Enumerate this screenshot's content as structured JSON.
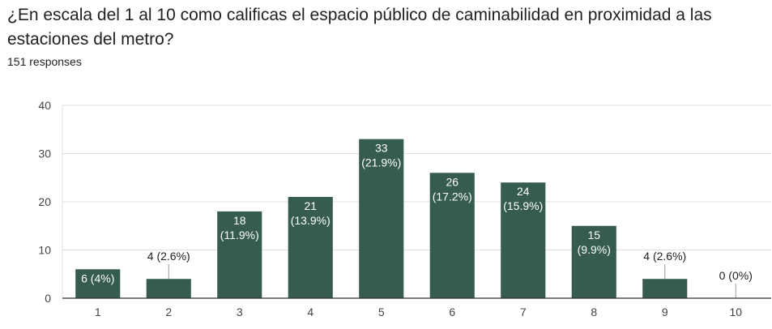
{
  "question": {
    "title": "¿En escala del 1 al 10 como calificas el espacio público de caminabilidad en proximidad a las estaciones del metro?",
    "responses": "151 responses"
  },
  "colors": {
    "bar": "#365C4F",
    "grid": "#E0E0E0",
    "axis": "#333333",
    "leader": "#999999"
  },
  "chart_data": {
    "type": "bar",
    "categories": [
      "1",
      "2",
      "3",
      "4",
      "5",
      "6",
      "7",
      "8",
      "9",
      "10"
    ],
    "values": [
      6,
      4,
      18,
      21,
      33,
      26,
      24,
      15,
      4,
      0
    ],
    "labels": [
      "6 (4%)",
      "4 (2.6%)",
      "18 (11.9%)",
      "21 (13.9%)",
      "33 (21.9%)",
      "26 (17.2%)",
      "24 (15.9%)",
      "15 (9.9%)",
      "4 (2.6%)",
      "0 (0%)"
    ],
    "yticks": [
      0,
      10,
      20,
      30,
      40
    ],
    "ylim": [
      0,
      40
    ],
    "grid": true
  }
}
